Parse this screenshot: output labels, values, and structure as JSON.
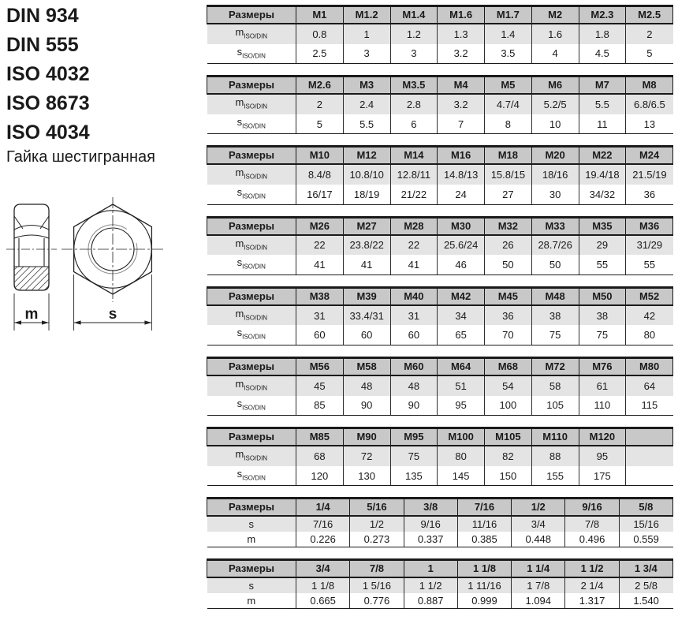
{
  "standards": [
    "DIN 934",
    "DIN 555",
    "ISO 4032",
    "ISO 8673",
    "ISO 4034"
  ],
  "product_title": "Гайка шестигранная",
  "drawing": {
    "m_label": "m",
    "s_label": "s",
    "views": [
      "nut-side-section-view",
      "nut-front-hex-view"
    ]
  },
  "colors": {
    "table_header_bg": "#c8c8c8",
    "table_shaded_row_bg": "#e4e4e4",
    "table_border": "#1a1a1a",
    "text": "#1a1a1a"
  },
  "metric_tables": [
    {
      "corner": "Размеры",
      "columns": [
        "M1",
        "M1.2",
        "M1.4",
        "M1.6",
        "M1.7",
        "M2",
        "M2.3",
        "M2.5"
      ],
      "rows": [
        {
          "label": {
            "text": "m",
            "sub": "ISO/DIN"
          },
          "shaded": true,
          "values": [
            "0.8",
            "1",
            "1.2",
            "1.3",
            "1.4",
            "1.6",
            "1.8",
            "2"
          ]
        },
        {
          "label": {
            "text": "s",
            "sub": "ISO/DIN"
          },
          "shaded": false,
          "values": [
            "2.5",
            "3",
            "3",
            "3.2",
            "3.5",
            "4",
            "4.5",
            "5"
          ]
        }
      ]
    },
    {
      "corner": "Размеры",
      "columns": [
        "M2.6",
        "M3",
        "M3.5",
        "M4",
        "M5",
        "M6",
        "M7",
        "M8"
      ],
      "rows": [
        {
          "label": {
            "text": "m",
            "sub": "ISO/DIN"
          },
          "shaded": true,
          "values": [
            "2",
            "2.4",
            "2.8",
            "3.2",
            "4.7/4",
            "5.2/5",
            "5.5",
            "6.8/6.5"
          ]
        },
        {
          "label": {
            "text": "s",
            "sub": "ISO/DIN"
          },
          "shaded": false,
          "values": [
            "5",
            "5.5",
            "6",
            "7",
            "8",
            "10",
            "11",
            "13"
          ]
        }
      ]
    },
    {
      "corner": "Размеры",
      "columns": [
        "M10",
        "M12",
        "M14",
        "M16",
        "M18",
        "M20",
        "M22",
        "M24"
      ],
      "rows": [
        {
          "label": {
            "text": "m",
            "sub": "ISO/DIN"
          },
          "shaded": true,
          "values": [
            "8.4/8",
            "10.8/10",
            "12.8/11",
            "14.8/13",
            "15.8/15",
            "18/16",
            "19.4/18",
            "21.5/19"
          ]
        },
        {
          "label": {
            "text": "s",
            "sub": "ISO/DIN"
          },
          "shaded": false,
          "values": [
            "16/17",
            "18/19",
            "21/22",
            "24",
            "27",
            "30",
            "34/32",
            "36"
          ]
        }
      ]
    },
    {
      "corner": "Размеры",
      "columns": [
        "M26",
        "M27",
        "M28",
        "M30",
        "M32",
        "M33",
        "M35",
        "M36"
      ],
      "rows": [
        {
          "label": {
            "text": "m",
            "sub": "ISO/DIN"
          },
          "shaded": true,
          "values": [
            "22",
            "23.8/22",
            "22",
            "25.6/24",
            "26",
            "28.7/26",
            "29",
            "31/29"
          ]
        },
        {
          "label": {
            "text": "s",
            "sub": "ISO/DIN"
          },
          "shaded": false,
          "values": [
            "41",
            "41",
            "41",
            "46",
            "50",
            "50",
            "55",
            "55"
          ]
        }
      ]
    },
    {
      "corner": "Размеры",
      "columns": [
        "M38",
        "M39",
        "M40",
        "M42",
        "M45",
        "M48",
        "M50",
        "M52"
      ],
      "rows": [
        {
          "label": {
            "text": "m",
            "sub": "ISO/DIN"
          },
          "shaded": true,
          "values": [
            "31",
            "33.4/31",
            "31",
            "34",
            "36",
            "38",
            "38",
            "42"
          ]
        },
        {
          "label": {
            "text": "s",
            "sub": "ISO/DIN"
          },
          "shaded": false,
          "values": [
            "60",
            "60",
            "60",
            "65",
            "70",
            "75",
            "75",
            "80"
          ]
        }
      ]
    },
    {
      "corner": "Размеры",
      "columns": [
        "M56",
        "M58",
        "M60",
        "M64",
        "M68",
        "M72",
        "M76",
        "M80"
      ],
      "rows": [
        {
          "label": {
            "text": "m",
            "sub": "ISO/DIN"
          },
          "shaded": true,
          "values": [
            "45",
            "48",
            "48",
            "51",
            "54",
            "58",
            "61",
            "64"
          ]
        },
        {
          "label": {
            "text": "s",
            "sub": "ISO/DIN"
          },
          "shaded": false,
          "values": [
            "85",
            "90",
            "90",
            "95",
            "100",
            "105",
            "110",
            "115"
          ]
        }
      ]
    },
    {
      "corner": "Размеры",
      "columns": [
        "M85",
        "M90",
        "M95",
        "M100",
        "M105",
        "M110",
        "M120",
        ""
      ],
      "rows": [
        {
          "label": {
            "text": "m",
            "sub": "ISO/DIN"
          },
          "shaded": true,
          "values": [
            "68",
            "72",
            "75",
            "80",
            "82",
            "88",
            "95",
            ""
          ]
        },
        {
          "label": {
            "text": "s",
            "sub": "ISO/DIN"
          },
          "shaded": false,
          "values": [
            "120",
            "130",
            "135",
            "145",
            "150",
            "155",
            "175",
            ""
          ]
        }
      ]
    }
  ],
  "imperial_tables": [
    {
      "corner": "Размеры",
      "columns": [
        "1/4",
        "5/16",
        "3/8",
        "7/16",
        "1/2",
        "9/16",
        "5/8"
      ],
      "rows": [
        {
          "label": {
            "text": "s"
          },
          "shaded": true,
          "values": [
            "7/16",
            "1/2",
            "9/16",
            "11/16",
            "3/4",
            "7/8",
            "15/16"
          ]
        },
        {
          "label": {
            "text": "m"
          },
          "shaded": false,
          "values": [
            "0.226",
            "0.273",
            "0.337",
            "0.385",
            "0.448",
            "0.496",
            "0.559"
          ]
        }
      ]
    },
    {
      "corner": "Размеры",
      "columns": [
        "3/4",
        "7/8",
        "1",
        "1 1/8",
        "1 1/4",
        "1 1/2",
        "1 3/4"
      ],
      "rows": [
        {
          "label": {
            "text": "s"
          },
          "shaded": true,
          "values": [
            "1 1/8",
            "1 5/16",
            "1 1/2",
            "1 11/16",
            "1 7/8",
            "2 1/4",
            "2 5/8"
          ]
        },
        {
          "label": {
            "text": "m"
          },
          "shaded": false,
          "values": [
            "0.665",
            "0.776",
            "0.887",
            "0.999",
            "1.094",
            "1.317",
            "1.540"
          ]
        }
      ]
    }
  ]
}
